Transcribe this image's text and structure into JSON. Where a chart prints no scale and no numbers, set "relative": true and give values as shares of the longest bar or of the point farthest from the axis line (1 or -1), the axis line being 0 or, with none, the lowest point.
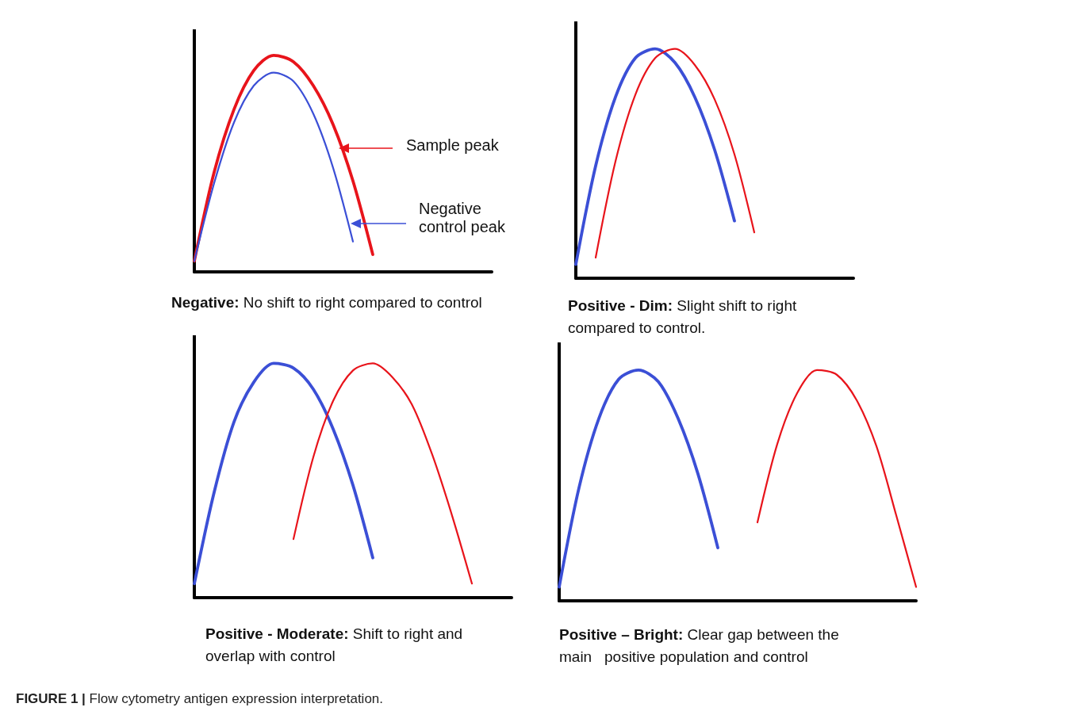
{
  "chart_data": [
    {
      "type": "line",
      "title": "Negative:",
      "subtitle": "No shift to right compared to control",
      "relative": true,
      "grid": false,
      "legend": "right",
      "marker": "none",
      "line_style": "solid",
      "categories": [
        null,
        null,
        null,
        null,
        null,
        null,
        null,
        null,
        null,
        null,
        null,
        null,
        null,
        null,
        null,
        null
      ],
      "series": [
        {
          "name": "Sample peak",
          "color": "#e8141b",
          "values": [
            0.05,
            0.46,
            0.75,
            0.93,
            1.0,
            0.97,
            0.86,
            0.68,
            0.42,
            0.08,
            null,
            null,
            null,
            null,
            null,
            null
          ]
        },
        {
          "name": "Negative control peak",
          "color": "#3b4fd6",
          "values": [
            0.05,
            0.41,
            0.69,
            0.86,
            0.92,
            0.88,
            0.73,
            0.48,
            0.14,
            null,
            null,
            null,
            null,
            null,
            null,
            null
          ]
        }
      ]
    },
    {
      "type": "line",
      "title": "Positive - Dim:",
      "subtitle": "Slight shift to right compared to control.",
      "relative": true,
      "grid": false,
      "legend": false,
      "marker": "none",
      "line_style": "solid",
      "categories": [
        null,
        null,
        null,
        null,
        null,
        null,
        null,
        null,
        null,
        null,
        null,
        null,
        null,
        null,
        null
      ],
      "series": [
        {
          "color": "#3b4fd6",
          "values": [
            0.06,
            0.49,
            0.79,
            0.96,
            1.0,
            0.94,
            0.79,
            0.56,
            0.25,
            null,
            null,
            null,
            null,
            null,
            null
          ]
        },
        {
          "color": "#e8141b",
          "values": [
            null,
            0.09,
            0.51,
            0.8,
            0.96,
            1.0,
            0.93,
            0.78,
            0.54,
            0.2,
            null,
            null,
            null,
            null,
            null
          ]
        }
      ]
    },
    {
      "type": "line",
      "title": "Positive - Moderate:",
      "subtitle": "Shift to right and overlap with control",
      "relative": true,
      "grid": false,
      "legend": false,
      "marker": "none",
      "line_style": "solid",
      "categories": [
        null,
        null,
        null,
        null,
        null,
        null,
        null,
        null,
        null,
        null,
        null,
        null,
        null,
        null,
        null,
        null,
        null
      ],
      "series": [
        {
          "color": "#3b4fd6",
          "values": [
            0.06,
            0.45,
            0.75,
            0.92,
            1.0,
            0.98,
            0.89,
            0.72,
            0.48,
            0.17,
            null,
            null,
            null,
            null,
            null,
            null,
            null
          ]
        },
        {
          "color": "#e8141b",
          "values": [
            null,
            null,
            null,
            null,
            null,
            0.25,
            0.6,
            0.84,
            0.97,
            1.0,
            0.94,
            0.82,
            0.61,
            0.35,
            0.06,
            null,
            null
          ]
        }
      ]
    },
    {
      "type": "line",
      "title": "Positive – Bright:",
      "subtitle": "Clear gap between the main   positive population and control",
      "relative": true,
      "grid": false,
      "legend": false,
      "marker": "none",
      "line_style": "solid",
      "annotations": [
        "FIGURE 1 | Flow cytometry antigen expression interpretation."
      ],
      "categories": [
        null,
        null,
        null,
        null,
        null,
        null,
        null,
        null,
        null,
        null,
        null,
        null,
        null,
        null,
        null,
        null,
        null,
        null,
        null
      ],
      "series": [
        {
          "color": "#3b4fd6",
          "values": [
            0.06,
            0.49,
            0.79,
            0.96,
            1.0,
            0.95,
            0.79,
            0.55,
            0.23,
            null,
            null,
            null,
            null,
            null,
            null,
            null,
            null,
            null,
            null
          ]
        },
        {
          "color": "#e8141b",
          "values": [
            null,
            null,
            null,
            null,
            null,
            null,
            null,
            null,
            null,
            null,
            0.34,
            0.68,
            0.9,
            1.0,
            0.98,
            0.87,
            0.67,
            0.37,
            0.06
          ]
        }
      ]
    }
  ]
}
